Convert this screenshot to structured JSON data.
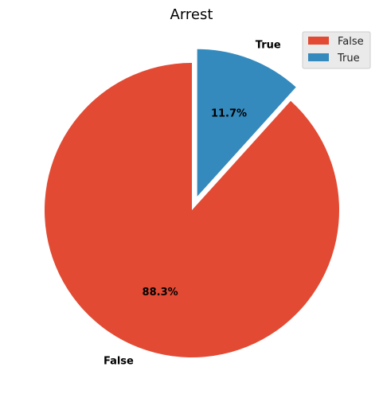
{
  "chart_data": {
    "type": "pie",
    "title": "Arrest",
    "categories": [
      "False",
      "True"
    ],
    "values": [
      88.3,
      11.7
    ],
    "labels": [
      "False",
      "True"
    ],
    "percent_labels": [
      "88.3%",
      "11.7%"
    ],
    "colors": [
      "#E24A33",
      "#348ABD"
    ],
    "explode": [
      0,
      0.1
    ],
    "start_angle_deg": 90,
    "direction": "counterclockwise",
    "legend": {
      "placement": "upper right",
      "entries": [
        "False",
        "True"
      ]
    }
  }
}
